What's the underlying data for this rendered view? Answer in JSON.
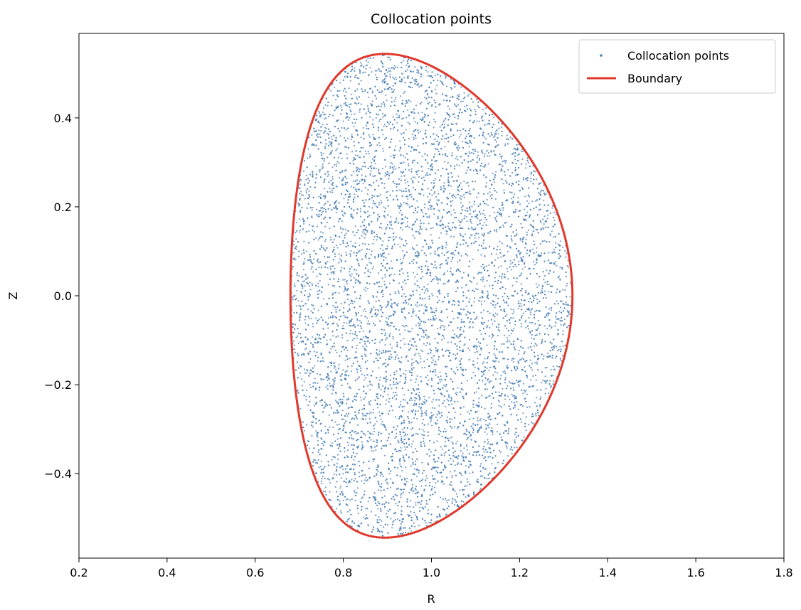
{
  "chart_data": {
    "type": "scatter",
    "title": "Collocation points",
    "xlabel": "R",
    "ylabel": "Z",
    "xlim": [
      0.2,
      1.8
    ],
    "ylim": [
      -0.59,
      0.59
    ],
    "xticks": [
      0.2,
      0.4,
      0.6,
      0.8,
      1.0,
      1.2,
      1.4,
      1.6,
      1.8
    ],
    "xtick_labels": [
      "0.2",
      "0.4",
      "0.6",
      "0.8",
      "1.0",
      "1.2",
      "1.4",
      "1.6",
      "1.8"
    ],
    "yticks": [
      -0.4,
      -0.2,
      0.0,
      0.2,
      0.4
    ],
    "ytick_labels": [
      "−0.4",
      "−0.2",
      "0.0",
      "0.2",
      "0.4"
    ],
    "grid": false,
    "legend_position": "top-right",
    "series": [
      {
        "name": "Collocation points",
        "kind": "scatter",
        "color": "#4a7fb5",
        "point_count": 9000,
        "region": "inside Boundary"
      },
      {
        "name": "Boundary",
        "kind": "line",
        "color": "#e0382b",
        "shape": {
          "type": "miller",
          "R0": 1.0,
          "a": 0.32,
          "kappa": 1.7,
          "delta": 0.33
        }
      }
    ]
  }
}
